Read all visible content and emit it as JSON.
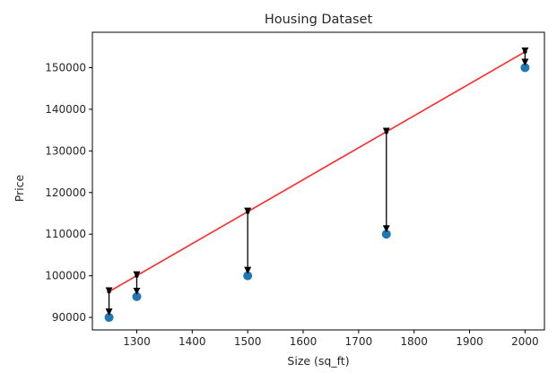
{
  "chart_data": {
    "type": "scatter",
    "title": "Housing Dataset",
    "xlabel": "Size (sq_ft)",
    "ylabel": "Price",
    "xlim": [
      1220,
      2035
    ],
    "ylim": [
      87000,
      158500
    ],
    "x_ticks": [
      1300,
      1400,
      1500,
      1600,
      1700,
      1800,
      1900,
      2000
    ],
    "y_ticks": [
      90000,
      100000,
      110000,
      120000,
      130000,
      140000,
      150000
    ],
    "grid": false,
    "series": [
      {
        "kind": "scatter",
        "x": [
          1250,
          1300,
          1500,
          1750,
          2000
        ],
        "y": [
          90000,
          95000,
          100000,
          110000,
          150000
        ],
        "color": "#1f77b4"
      },
      {
        "kind": "line",
        "x": [
          1250,
          2000
        ],
        "y": [
          96200,
          153800
        ],
        "color": "#ff2a2a"
      },
      {
        "kind": "points",
        "x": [
          1250,
          1300,
          1500,
          1750,
          2000
        ],
        "y": [
          96200,
          100000,
          115300,
          134500,
          153800
        ],
        "color": "#000000"
      }
    ],
    "residual_arrows": [
      {
        "x": 1250,
        "from": 96200,
        "to": 90000
      },
      {
        "x": 1300,
        "from": 100000,
        "to": 95000
      },
      {
        "x": 1500,
        "from": 115300,
        "to": 100000
      },
      {
        "x": 1750,
        "from": 134500,
        "to": 110000
      },
      {
        "x": 2000,
        "from": 153800,
        "to": 150000
      }
    ]
  }
}
